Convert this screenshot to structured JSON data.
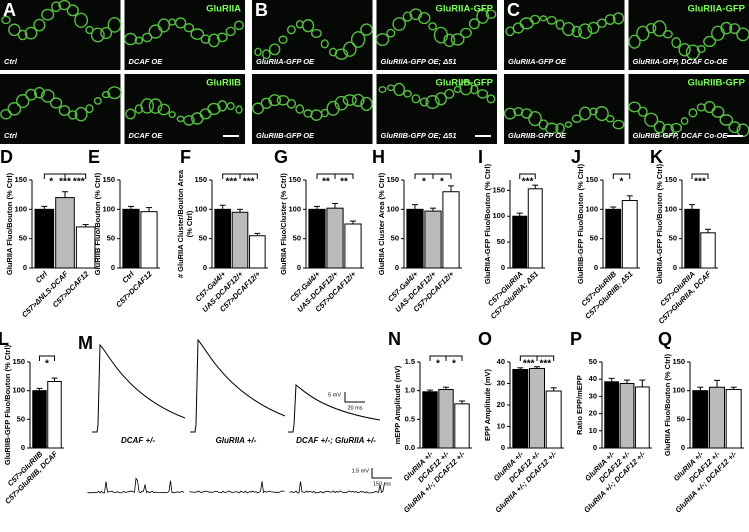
{
  "image_panels": [
    {
      "letter": "A",
      "tiles": [
        "Ctrl",
        "DCAF OE",
        "Ctrl",
        "DCAF OE"
      ],
      "channels": [
        "GluRIIA",
        "GluRIIB"
      ]
    },
    {
      "letter": "B",
      "tiles": [
        "GluRIIA-GFP OE",
        "GluRIIA-GFP OE; Δ51",
        "GluRIIB-GFP OE",
        "GluRIIB-GFP OE; Δ51"
      ],
      "channels": [
        "GluRIIA-GFP",
        "GluRIIB-GFP"
      ]
    },
    {
      "letter": "C",
      "tiles": [
        "GluRIIA-GFP OE",
        "GluRIIA-GFP, DCAF Co-OE",
        "GluRIIB-GFP OE",
        "GluRIIB-GFP, DCAF Co-OE"
      ],
      "channels": [
        "GluRIIA-GFP",
        "GluRIIB-GFP"
      ]
    }
  ],
  "trace_panel": {
    "letter": "M",
    "labels": [
      "DCAF +/-",
      "GluRIIA +/-",
      "DCAF +/-; GluRIIA +/-"
    ],
    "scale_bars": [
      "5 mV",
      "20 ms",
      "1.5 mV",
      "150 ms"
    ]
  },
  "chart_data": [
    {
      "type": "bar",
      "panel": "D",
      "ylabel": "GluRIIA Fluo/Bouton (% Ctrl)",
      "categories": [
        "Ctrl",
        "C57>ΔNLS-DCAF",
        "C57>DCAF12"
      ],
      "values": [
        100,
        120,
        70
      ],
      "errors": [
        5,
        10,
        4
      ],
      "colors": [
        "#000000",
        "#bbbbbb",
        "#ffffff"
      ],
      "ylim": [
        0,
        150
      ],
      "yticks": [
        0,
        50,
        100,
        150
      ],
      "annotations": [
        "*",
        "***",
        "***"
      ]
    },
    {
      "type": "bar",
      "panel": "E",
      "ylabel": "GluRIIB Fluo/Bouton (% Ctrl)",
      "categories": [
        "Ctrl",
        "C57>DCAF12"
      ],
      "values": [
        100,
        96
      ],
      "errors": [
        5,
        7
      ],
      "colors": [
        "#000000",
        "#ffffff"
      ],
      "ylim": [
        0,
        150
      ],
      "yticks": [
        0,
        50,
        100,
        150
      ],
      "annotations": []
    },
    {
      "type": "bar",
      "panel": "F",
      "ylabel": [
        "# GluRIIA Cluster/Bouton Area",
        "(% Ctrl)"
      ],
      "categories": [
        "C57-Gal4/+",
        "UAS-DCAF12/+",
        "C57>DCAF12/+"
      ],
      "values": [
        100,
        95,
        55
      ],
      "errors": [
        7,
        5,
        4
      ],
      "colors": [
        "#000000",
        "#bbbbbb",
        "#ffffff"
      ],
      "ylim": [
        0,
        150
      ],
      "yticks": [
        0,
        50,
        100,
        150
      ],
      "annotations": [
        "***",
        "***"
      ]
    },
    {
      "type": "bar",
      "panel": "G",
      "ylabel": "GluRIIA Fluo/Cluster (% Ctrl)",
      "categories": [
        "C57-Gal4/+",
        "UAS-DCAF12/+",
        "C57>DCAF12/+"
      ],
      "values": [
        100,
        102,
        75
      ],
      "errors": [
        5,
        8,
        5
      ],
      "colors": [
        "#000000",
        "#bbbbbb",
        "#ffffff"
      ],
      "ylim": [
        0,
        150
      ],
      "yticks": [
        0,
        50,
        100,
        150
      ],
      "annotations": [
        "**",
        "**"
      ]
    },
    {
      "type": "bar",
      "panel": "H",
      "ylabel": "GluRIIA Cluster Area (% Ctrl)",
      "categories": [
        "C57-Gal4/+",
        "UAS-DCAF12/+",
        "C57>DCAF12/+"
      ],
      "values": [
        100,
        97,
        130
      ],
      "errors": [
        8,
        5,
        10
      ],
      "colors": [
        "#000000",
        "#bbbbbb",
        "#ffffff"
      ],
      "ylim": [
        0,
        150
      ],
      "yticks": [
        0,
        50,
        100,
        150
      ],
      "annotations": [
        "*",
        "*"
      ]
    },
    {
      "type": "bar",
      "panel": "I",
      "ylabel": "GluRIIA-GFP Fluo/Bouton (% Ctrl)",
      "categories": [
        "C57>GluRIIA",
        "C57>GluRIIA; Δ51"
      ],
      "values": [
        100,
        153
      ],
      "errors": [
        6,
        7
      ],
      "colors": [
        "#000000",
        "#ffffff"
      ],
      "ylim": [
        0,
        170
      ],
      "yticks": [
        0,
        50,
        100,
        150
      ],
      "annotations": [
        "***"
      ]
    },
    {
      "type": "bar",
      "panel": "J",
      "ylabel": "GluRIIB-GFP Fluo/Bouton (% Ctrl)",
      "categories": [
        "C57>GluRIIB",
        "C57>GluRIIB; Δ51"
      ],
      "values": [
        100,
        115
      ],
      "errors": [
        4,
        8
      ],
      "colors": [
        "#000000",
        "#ffffff"
      ],
      "ylim": [
        0,
        150
      ],
      "yticks": [
        0,
        50,
        100,
        150
      ],
      "annotations": [
        "*"
      ]
    },
    {
      "type": "bar",
      "panel": "K",
      "ylabel": "GluRIIA-GFP Fluo/Bouton (% Ctrl)",
      "categories": [
        "C57>GluRIIA",
        "C57>GluRIIA, DCAF"
      ],
      "values": [
        100,
        60
      ],
      "errors": [
        8,
        6
      ],
      "colors": [
        "#000000",
        "#ffffff"
      ],
      "ylim": [
        0,
        150
      ],
      "yticks": [
        0,
        50,
        100,
        150
      ],
      "annotations": [
        "***"
      ]
    },
    {
      "type": "bar",
      "panel": "L",
      "ylabel": "GluRIIB-GFP Fluo/Bouton (% Ctrl)",
      "categories": [
        "C57>GluRIIB",
        "C57>GluRIIB, DCAF"
      ],
      "values": [
        100,
        116
      ],
      "errors": [
        4,
        6
      ],
      "colors": [
        "#000000",
        "#ffffff"
      ],
      "ylim": [
        0,
        150
      ],
      "yticks": [
        0,
        50,
        100,
        150
      ],
      "annotations": [
        "*"
      ]
    },
    {
      "type": "bar",
      "panel": "N",
      "ylabel": "mEPP Amplitude (mV)",
      "categories": [
        "GluRIIA +/-",
        "DCAF12 +/-",
        "GluRIIA +/-; DCAF12 +/-"
      ],
      "values": [
        0.98,
        1.02,
        0.77
      ],
      "errors": [
        0.03,
        0.04,
        0.05
      ],
      "colors": [
        "#000000",
        "#bbbbbb",
        "#ffffff"
      ],
      "ylim": [
        0,
        1.5
      ],
      "yticks": [
        {
          "value": 0,
          "label": "0.0"
        },
        0.5,
        {
          "value": 1,
          "label": "1.0"
        },
        1.5
      ],
      "annotations": [
        "*",
        "*"
      ]
    },
    {
      "type": "bar",
      "panel": "O",
      "ylabel": "EPP Amplitude (mV)",
      "categories": [
        "GluRIIA +/-",
        "DCAF12 +/-",
        "GluRIIA +/-; DCAF12 +/-"
      ],
      "values": [
        36.5,
        37,
        26.5
      ],
      "errors": [
        0.8,
        0.8,
        1.5
      ],
      "colors": [
        "#000000",
        "#bbbbbb",
        "#ffffff"
      ],
      "ylim": [
        0,
        40
      ],
      "yticks": [
        0,
        10,
        20,
        30,
        40
      ],
      "annotations": [
        "***",
        "***"
      ]
    },
    {
      "type": "bar",
      "panel": "P",
      "ylabel": "Ratio EPP/mEPP",
      "categories": [
        "GluRIIA +/-",
        "DCAF12 +/-",
        "GluRIIA +/-; DCAF12 +/-"
      ],
      "values": [
        38.5,
        37.5,
        35.5
      ],
      "errors": [
        2,
        2,
        4
      ],
      "colors": [
        "#000000",
        "#bbbbbb",
        "#ffffff"
      ],
      "ylim": [
        0,
        50
      ],
      "yticks": [
        0,
        10,
        20,
        30,
        40,
        50
      ],
      "annotations": []
    },
    {
      "type": "bar",
      "panel": "Q",
      "ylabel": "GluRIIA Fluo/Bouton (% Ctrl)",
      "categories": [
        "GluRIIA +/-",
        "DCAF12 +/-",
        "GluRIIA +/-; DCAF12 +/-"
      ],
      "values": [
        100,
        106,
        102
      ],
      "errors": [
        6,
        12,
        4
      ],
      "colors": [
        "#000000",
        "#bbbbbb",
        "#ffffff"
      ],
      "ylim": [
        0,
        150
      ],
      "yticks": [
        0,
        50,
        100,
        150
      ],
      "annotations": []
    }
  ]
}
